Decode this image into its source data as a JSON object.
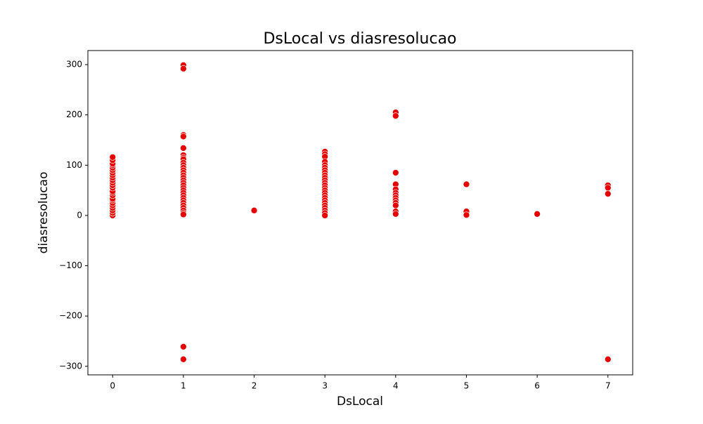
{
  "chart_data": {
    "type": "scatter",
    "title": "DsLocal vs diasresolucao",
    "x_label": "DsLocal",
    "y_label": "diasresolucao",
    "color": "#e60000",
    "xlim": [
      -0.35,
      7.35
    ],
    "ylim": [
      -317,
      328
    ],
    "xticks": [
      0,
      1,
      2,
      3,
      4,
      5,
      6,
      7
    ],
    "yticks": [
      {
        "value": -300,
        "label": "−300"
      },
      {
        "value": -200,
        "label": "−200"
      },
      {
        "value": -100,
        "label": "−100"
      },
      0,
      100,
      200,
      300
    ],
    "x": [
      0,
      0,
      0,
      0,
      0,
      0,
      0,
      0,
      0,
      0,
      0,
      0,
      0,
      0,
      0,
      0,
      0,
      0,
      0,
      0,
      0,
      0,
      0,
      0,
      1,
      1,
      1,
      1,
      1,
      1,
      1,
      1,
      1,
      1,
      1,
      1,
      1,
      1,
      1,
      1,
      1,
      1,
      1,
      1,
      1,
      1,
      1,
      1,
      1,
      1,
      1,
      1,
      1,
      1,
      1,
      1,
      2,
      3,
      3,
      3,
      3,
      3,
      3,
      3,
      3,
      3,
      3,
      3,
      3,
      3,
      3,
      3,
      3,
      3,
      3,
      3,
      3,
      3,
      3,
      3,
      3,
      3,
      4,
      4,
      4,
      4,
      4,
      4,
      4,
      4,
      4,
      4,
      4,
      4,
      4,
      5,
      5,
      5,
      6,
      7,
      7,
      7,
      7
    ],
    "values": [
      0,
      5,
      10,
      15,
      20,
      25,
      30,
      33,
      40,
      45,
      48,
      55,
      60,
      65,
      70,
      75,
      80,
      85,
      90,
      95,
      100,
      103,
      110,
      116,
      299,
      292,
      160,
      157,
      134,
      120,
      115,
      112,
      105,
      100,
      95,
      90,
      85,
      80,
      75,
      70,
      65,
      60,
      55,
      50,
      45,
      40,
      35,
      30,
      25,
      20,
      15,
      10,
      5,
      2,
      -261,
      -286,
      10,
      127,
      122,
      117,
      107,
      100,
      95,
      90,
      85,
      80,
      75,
      70,
      65,
      60,
      55,
      50,
      45,
      40,
      35,
      30,
      25,
      20,
      15,
      10,
      5,
      0,
      205,
      198,
      85,
      62,
      52,
      45,
      40,
      35,
      30,
      25,
      20,
      8,
      3,
      62,
      8,
      1,
      3,
      60,
      55,
      43,
      -286
    ]
  }
}
